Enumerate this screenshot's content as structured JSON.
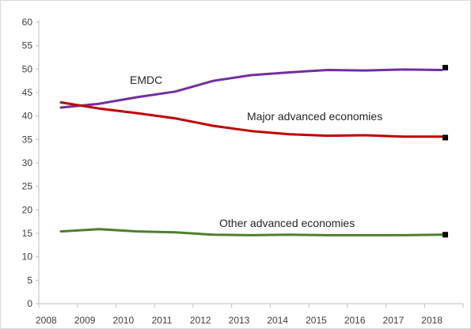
{
  "chart_data": {
    "type": "line",
    "title": "",
    "xlabel": "",
    "ylabel": "",
    "x": [
      "2008",
      "2009",
      "2010",
      "2011",
      "2012",
      "2013",
      "2014",
      "2015",
      "2016",
      "2017",
      "2018"
    ],
    "ylim": [
      0,
      60
    ],
    "yticks": [
      0,
      5,
      10,
      15,
      20,
      25,
      30,
      35,
      40,
      45,
      50,
      55,
      60
    ],
    "grid": false,
    "legend": "none",
    "series": [
      {
        "name": "EMDC",
        "color": "#7030a0",
        "values": [
          41.8,
          42.6,
          44.0,
          45.2,
          47.5,
          48.7,
          49.3,
          49.8,
          49.7,
          49.9,
          49.8
        ],
        "end_marker": 50.3
      },
      {
        "name": "Major advanced economies",
        "color": "#c00000",
        "values": [
          42.9,
          41.6,
          40.6,
          39.5,
          37.9,
          36.8,
          36.1,
          35.8,
          35.9,
          35.6,
          35.6
        ],
        "end_marker": 35.4
      },
      {
        "name": "Other advanced economies",
        "color": "#4e7f2e",
        "values": [
          15.4,
          15.9,
          15.4,
          15.2,
          14.7,
          14.6,
          14.7,
          14.6,
          14.6,
          14.6,
          14.7
        ],
        "end_marker": 14.7
      }
    ],
    "annotations": [
      {
        "text": "EMDC",
        "series": "EMDC"
      },
      {
        "text": "Major advanced economies",
        "series": "Major advanced economies"
      },
      {
        "text": "Other advanced economies",
        "series": "Other advanced economies"
      }
    ]
  }
}
